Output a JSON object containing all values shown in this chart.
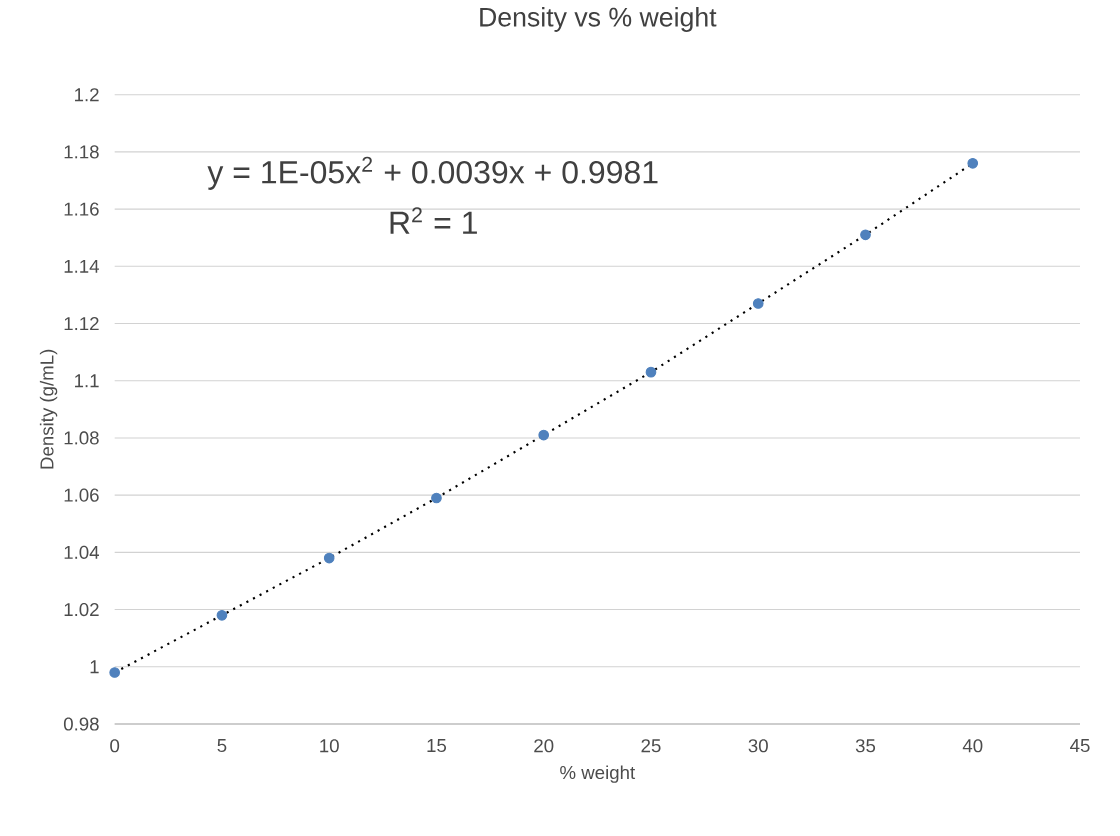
{
  "chart_data": {
    "type": "scatter",
    "title": "Density vs % weight",
    "xlabel": "% weight",
    "ylabel": "Density (g/mL)",
    "annotations": [
      "y = 1E-05x$^{2}$ + 0.0039x + 0.9981",
      "R$^{2}$ = 1"
    ],
    "series": [
      {
        "color": "#4f81bd",
        "marker": "circle",
        "x": [
          0,
          5,
          10,
          15,
          20,
          25,
          30,
          35,
          40
        ],
        "values": [
          0.998,
          1.018,
          1.038,
          1.059,
          1.081,
          1.103,
          1.127,
          1.151,
          1.176
        ]
      },
      {
        "type": "line",
        "color": "#000000",
        "marker": "none",
        "line_style": "dotted",
        "x": [
          0,
          5,
          10,
          15,
          20,
          25,
          30,
          35,
          40
        ],
        "values": [
          0.998,
          1.018,
          1.038,
          1.059,
          1.081,
          1.103,
          1.127,
          1.151,
          1.176
        ]
      }
    ],
    "xlim": [
      0,
      45
    ],
    "ylim": [
      0.98,
      1.2
    ],
    "xticks": [
      0,
      5,
      10,
      15,
      20,
      25,
      30,
      35,
      40,
      45
    ],
    "yticks": [
      0.98,
      1,
      1.02,
      1.04,
      1.06,
      1.08,
      1.1,
      1.12,
      1.14,
      1.16,
      1.18,
      1.2
    ],
    "grid": "y"
  }
}
